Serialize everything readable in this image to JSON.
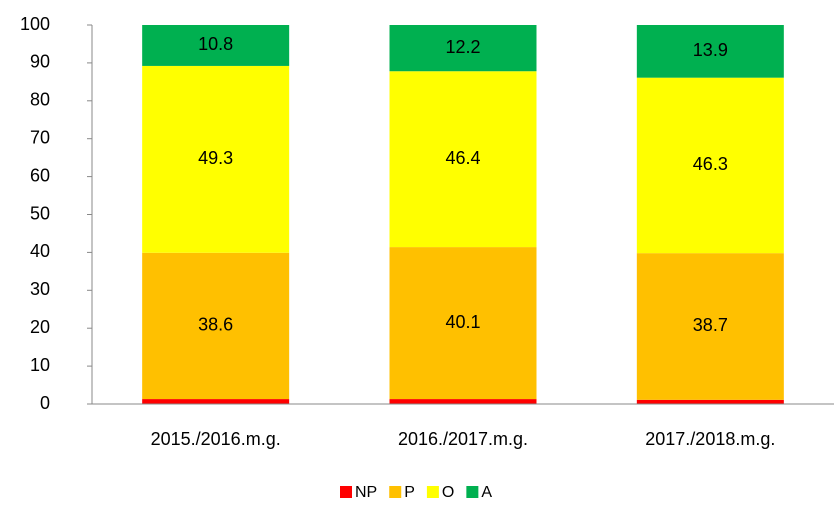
{
  "chart_data": {
    "type": "stacked_bar",
    "categories": [
      "2015./2016.m.g.",
      "2016./2017.m.g.",
      "2017./2018.m.g."
    ],
    "series": [
      {
        "name": "NP",
        "color": "#ff0000",
        "values": [
          1.3,
          1.3,
          1.1
        ]
      },
      {
        "name": "P",
        "color": "#ffc000",
        "values": [
          38.6,
          40.1,
          38.7
        ]
      },
      {
        "name": "O",
        "color": "#ffff00",
        "values": [
          49.3,
          46.4,
          46.3
        ]
      },
      {
        "name": "A",
        "color": "#00b050",
        "values": [
          10.8,
          12.2,
          13.9
        ]
      }
    ],
    "ylim": [
      0,
      100
    ],
    "yticks": [
      0,
      10,
      20,
      30,
      40,
      50,
      60,
      70,
      80,
      90,
      100
    ],
    "grid": false,
    "legend": "bottom"
  }
}
